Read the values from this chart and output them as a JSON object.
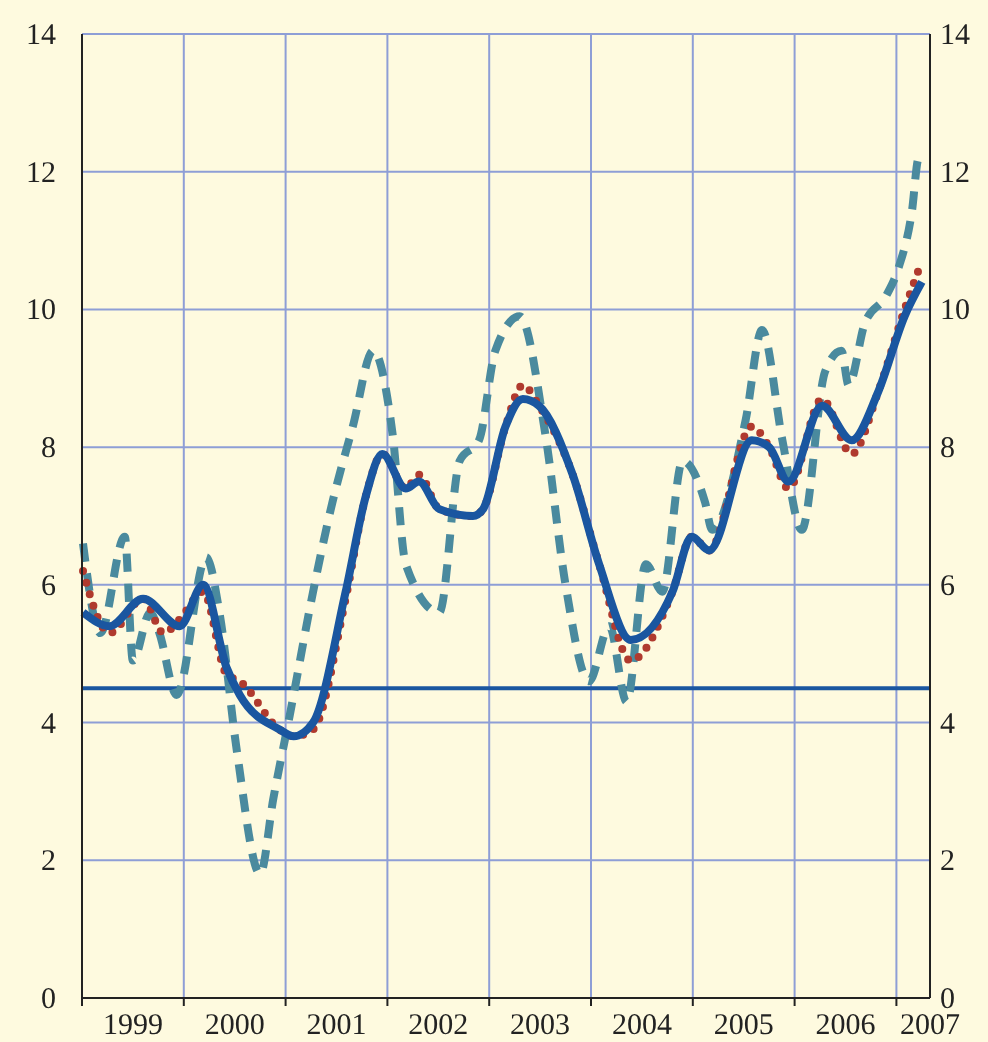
{
  "chart_data": {
    "type": "line",
    "xlim": [
      1999,
      2007.33
    ],
    "xticks": [
      {
        "value": 1999,
        "label": null
      },
      {
        "value": 1999.5,
        "label": "1999"
      },
      {
        "value": 2000,
        "label": null
      },
      {
        "value": 2000.5,
        "label": "2000"
      },
      {
        "value": 2001,
        "label": null
      },
      {
        "value": 2001.5,
        "label": "2001"
      },
      {
        "value": 2002,
        "label": null
      },
      {
        "value": 2002.5,
        "label": "2002"
      },
      {
        "value": 2003,
        "label": null
      },
      {
        "value": 2003.5,
        "label": "2003"
      },
      {
        "value": 2004,
        "label": null
      },
      {
        "value": 2004.5,
        "label": "2004"
      },
      {
        "value": 2005,
        "label": null
      },
      {
        "value": 2005.5,
        "label": "2005"
      },
      {
        "value": 2006,
        "label": null
      },
      {
        "value": 2006.5,
        "label": "2006"
      },
      {
        "value": 2007,
        "label": null
      },
      {
        "value": 2007.33,
        "label": "2007"
      }
    ],
    "ylim": [
      0,
      14
    ],
    "yticks": [
      0,
      2,
      4,
      6,
      8,
      10,
      12,
      14
    ],
    "y2lim": [
      0,
      14
    ],
    "y2ticks": [
      0,
      2,
      4,
      6,
      8,
      10,
      12,
      14
    ],
    "grid": true,
    "series": [
      {
        "color": "#4a8a9e",
        "line_style": "dashed",
        "x": [
          1999.01,
          1999.18,
          1999.42,
          1999.5,
          1999.67,
          1999.76,
          1999.93,
          2000.22,
          2000.35,
          2000.52,
          2000.75,
          2000.88,
          2001.04,
          2001.27,
          2001.46,
          2001.66,
          2001.86,
          2002.05,
          2002.18,
          2002.51,
          2002.71,
          2002.9,
          2003.06,
          2003.3,
          2003.55,
          2003.75,
          2003.98,
          2004.18,
          2004.35,
          2004.54,
          2004.7,
          2004.9,
          2005.12,
          2005.19,
          2005.52,
          2005.68,
          2005.88,
          2006.07,
          2006.3,
          2006.46,
          2006.53,
          2006.69,
          2006.9,
          2007.02,
          2007.15,
          2007.22,
          2007.3
        ],
        "values": [
          6.6,
          5.3,
          6.7,
          4.9,
          5.6,
          5.3,
          4.4,
          6.4,
          5.6,
          3.6,
          1.8,
          2.9,
          4.1,
          5.9,
          7.2,
          8.3,
          9.4,
          8.2,
          6.3,
          5.6,
          7.8,
          8.1,
          9.4,
          9.9,
          8.2,
          6,
          4.6,
          5.4,
          4.3,
          6.3,
          5.9,
          7.8,
          7.2,
          6.8,
          8.4,
          9.7,
          8.1,
          6.8,
          9.1,
          9.4,
          8.9,
          9.8,
          10.2,
          10.6,
          11.4,
          12.2,
          12.2
        ]
      },
      {
        "color": "#b03a2e",
        "line_style": "dotted",
        "x": [
          1999.01,
          1999.27,
          1999.6,
          1999.8,
          1999.96,
          2000.19,
          2000.42,
          2000.55,
          2000.94,
          2001.08,
          2001.27,
          2001.59,
          2001.79,
          2001.95,
          2002.18,
          2002.31,
          2002.51,
          2002.84,
          2002.94,
          2003.16,
          2003.33,
          2003.49,
          2003.82,
          2004.08,
          2004.39,
          2004.8,
          2004.99,
          2005.16,
          2005.58,
          2005.75,
          2005.94,
          2006.27,
          2006.56,
          2006.82,
          2007.08,
          2007.25
        ],
        "values": [
          6.2,
          5.3,
          5.8,
          5.3,
          5.5,
          5.9,
          4.7,
          4.6,
          3.9,
          3.8,
          3.9,
          5.8,
          7.3,
          7.9,
          7.4,
          7.6,
          7.1,
          7,
          7.1,
          8.3,
          8.9,
          8.6,
          7.6,
          6.3,
          4.9,
          5.9,
          6.7,
          6.5,
          8.3,
          8,
          7.4,
          8.7,
          7.9,
          8.8,
          10,
          10.7
        ]
      },
      {
        "color": "#1a56a0",
        "line_style": "solid",
        "x": [
          1999.01,
          1999.27,
          1999.6,
          1999.96,
          2000.19,
          2000.42,
          2000.55,
          2000.94,
          2001.08,
          2001.27,
          2001.59,
          2001.79,
          2001.95,
          2002.18,
          2002.31,
          2002.51,
          2002.84,
          2002.94,
          2003.16,
          2003.33,
          2003.49,
          2003.82,
          2004.08,
          2004.39,
          2004.8,
          2004.99,
          2005.16,
          2005.58,
          2005.75,
          2005.94,
          2006.27,
          2006.56,
          2006.82,
          2007.08,
          2007.25
        ],
        "values": [
          5.6,
          5.4,
          5.8,
          5.4,
          6,
          4.8,
          4.4,
          3.9,
          3.8,
          4,
          5.9,
          7.3,
          7.9,
          7.4,
          7.5,
          7.1,
          7,
          7.1,
          8.3,
          8.7,
          8.6,
          7.6,
          6.3,
          5.2,
          5.9,
          6.7,
          6.5,
          8.1,
          8,
          7.5,
          8.6,
          8.1,
          8.8,
          9.9,
          10.4
        ]
      }
    ],
    "ref_lines": [
      {
        "axis": "y",
        "value": 4.5,
        "color": "#1a56a0"
      }
    ]
  }
}
